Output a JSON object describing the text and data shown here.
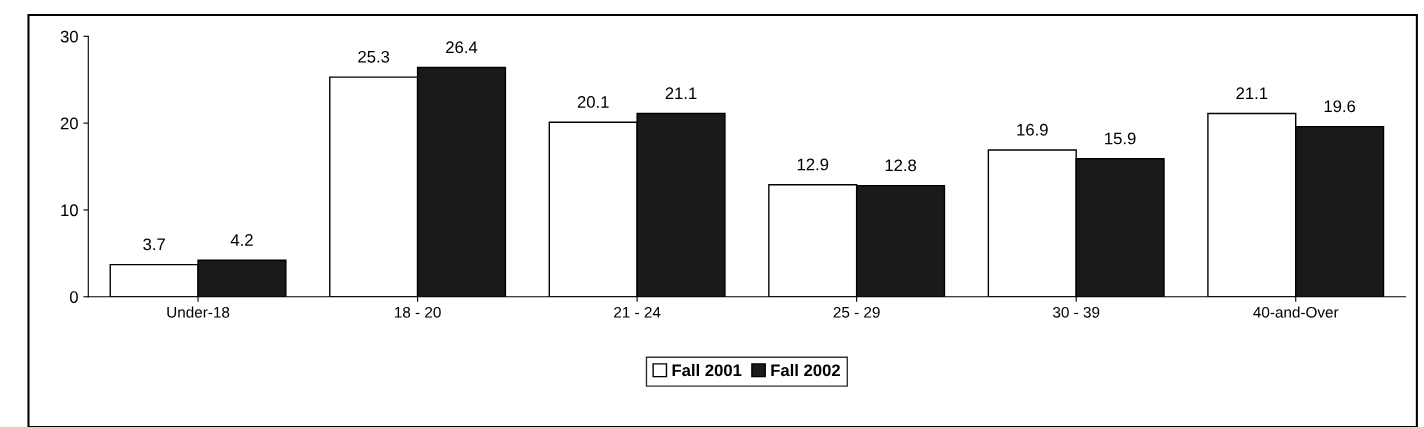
{
  "chart_data": {
    "type": "bar",
    "categories": [
      "Under-18",
      "18 - 20",
      "21 - 24",
      "25 - 29",
      "30 - 39",
      "40-and-Over"
    ],
    "series": [
      {
        "name": "Fall 2001",
        "color": "#ffffff",
        "values": [
          3.7,
          25.3,
          20.1,
          12.9,
          16.9,
          21.1
        ]
      },
      {
        "name": "Fall 2002",
        "color": "#1a1a1a",
        "values": [
          4.2,
          26.4,
          21.1,
          12.8,
          15.9,
          19.6
        ]
      }
    ],
    "ylim": [
      0,
      30
    ],
    "yticks": [
      0,
      10,
      20,
      30
    ],
    "data_labels": true,
    "grid": false,
    "legend": "bottom"
  }
}
